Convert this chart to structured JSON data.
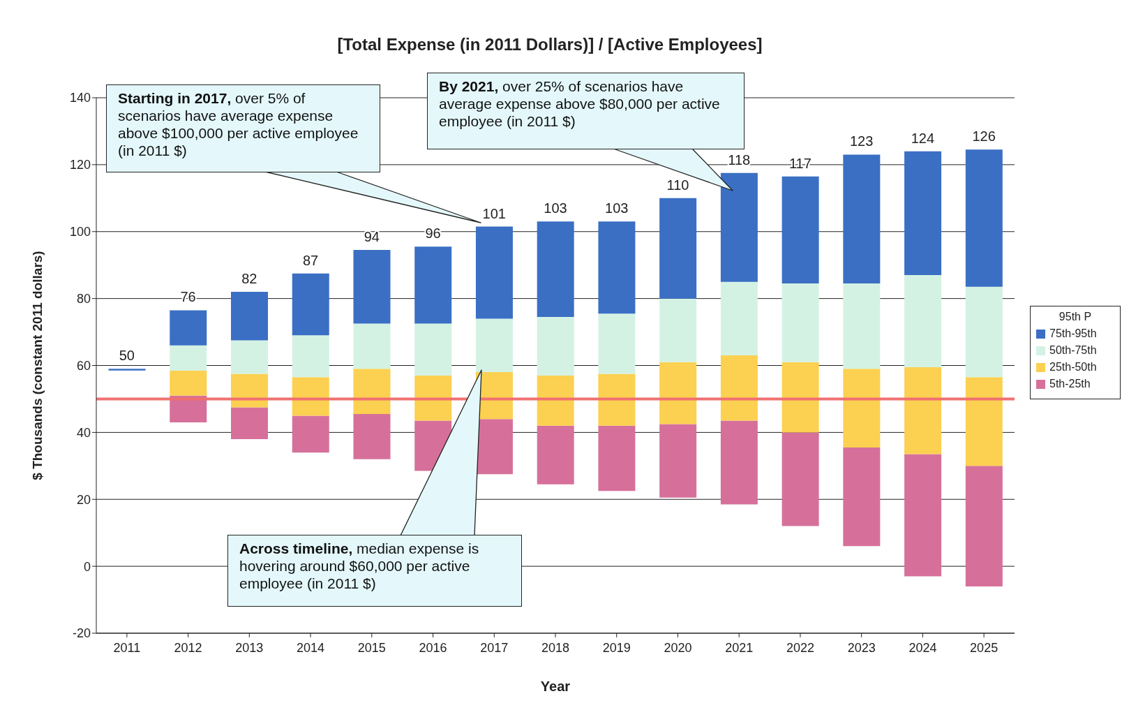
{
  "chart_data": {
    "type": "bar",
    "title": "[Total Expense (in 2011 Dollars)] / [Active Employees]",
    "xlabel": "Year",
    "ylabel": "$ Thousands (constant 2011 dollars)",
    "legend_title": "95th P",
    "categories": [
      "2011",
      "2012",
      "2013",
      "2014",
      "2015",
      "2016",
      "2017",
      "2018",
      "2019",
      "2020",
      "2021",
      "2022",
      "2023",
      "2024",
      "2025"
    ],
    "series": [
      {
        "name": "5th-25th",
        "color": "#d6709a",
        "base": [
          null,
          43,
          38,
          34,
          32,
          28.5,
          27.5,
          24.5,
          22.5,
          20.5,
          18.5,
          12,
          6,
          -3,
          -6
        ],
        "values": [
          null,
          8,
          9.5,
          11,
          13.5,
          15,
          16.5,
          17.5,
          19.5,
          22,
          25,
          28,
          29.5,
          36.5,
          36
        ]
      },
      {
        "name": "25th-50th",
        "color": "#fcd050",
        "base": [
          null,
          51,
          47.5,
          45,
          45.5,
          43.5,
          44,
          42,
          42,
          42.5,
          43.5,
          40,
          35.5,
          33.5,
          30
        ],
        "values": [
          null,
          7.5,
          10,
          11.5,
          13.5,
          13.5,
          14,
          15,
          15.5,
          18.5,
          19.5,
          21,
          23.5,
          26,
          26.5
        ]
      },
      {
        "name": "50th-75th",
        "color": "#d4f2e4",
        "base": [
          null,
          58.5,
          57.5,
          56.5,
          59,
          57,
          58,
          57,
          57.5,
          61,
          63,
          61,
          59,
          59.5,
          56.5
        ],
        "values": [
          null,
          7.5,
          10,
          12.5,
          13.5,
          15.5,
          16,
          17.5,
          18,
          19,
          22,
          23.5,
          25.5,
          27.5,
          27
        ]
      },
      {
        "name": "75th-95th",
        "color": "#3a6fc4",
        "base": [
          58.5,
          66,
          67.5,
          69,
          72.5,
          72.5,
          74,
          74.5,
          75.5,
          80,
          85,
          84.5,
          84.5,
          87,
          83.5
        ],
        "values": [
          0.5,
          10.5,
          14.5,
          18.5,
          22,
          23,
          27.5,
          28.5,
          27.5,
          30,
          32.5,
          32,
          38.5,
          37,
          41
        ]
      }
    ],
    "ylim": [
      -20,
      140
    ],
    "yticks": [
      -20,
      0,
      20,
      40,
      60,
      80,
      100,
      120,
      140
    ],
    "grid": "y",
    "legend": "right",
    "ref_lines": [
      {
        "axis": "y",
        "value": 50,
        "color": "#f07070"
      }
    ],
    "annotations": [
      "Starting in 2017, over 5% of scenarios have average expense above $100,000 per active employee (in 2011 $)",
      "By 2021, over 25% of scenarios have average expense above $80,000 per active employee (in 2011 $)",
      "Across timeline, median expense is hovering around $60,000 per active employee (in 2011 $)",
      {
        "text": "50",
        "x": "2011",
        "y": 59
      },
      {
        "text": "76",
        "x": "2012",
        "y": 76.5
      },
      {
        "text": "82",
        "x": "2013",
        "y": 82
      },
      {
        "text": "87",
        "x": "2014",
        "y": 87.5
      },
      {
        "text": "94",
        "x": "2015",
        "y": 94.5
      },
      {
        "text": "96",
        "x": "2016",
        "y": 95.5
      },
      {
        "text": "101",
        "x": "2017",
        "y": 101.5
      },
      {
        "text": "103",
        "x": "2018",
        "y": 103
      },
      {
        "text": "103",
        "x": "2019",
        "y": 103
      },
      {
        "text": "110",
        "x": "2020",
        "y": 110
      },
      {
        "text": "118",
        "x": "2021",
        "y": 117.5
      },
      {
        "text": "117",
        "x": "2022",
        "y": 116.5
      },
      {
        "text": "123",
        "x": "2023",
        "y": 123
      },
      {
        "text": "124",
        "x": "2024",
        "y": 124
      },
      {
        "text": "126",
        "x": "2025",
        "y": 124.5
      }
    ]
  }
}
